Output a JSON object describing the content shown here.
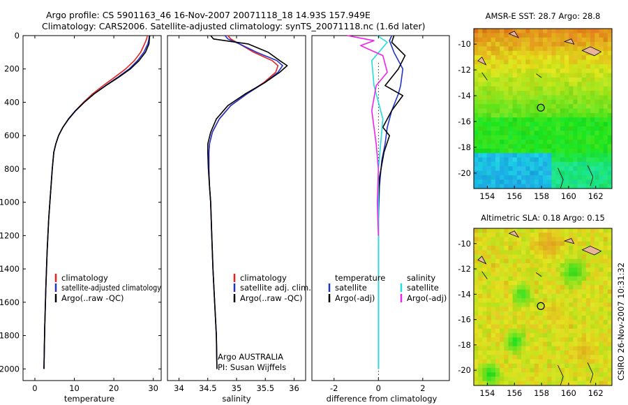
{
  "header": {
    "line1": "Argo profile: CS 5901163_46 16-Nov-2007 20071118_18 14.93S 157.949E",
    "line2": "Climatology: CARS2006. Satellite-adjusted climatology: synTS_20071118.nc (1.6d later)"
  },
  "colors": {
    "climatology": "#e8231f",
    "satellite": "#2233cc",
    "argo": "#000000",
    "salinity_satellite": "#22dddd",
    "salinity_argo": "#ee22ee",
    "land": "#e9b49a"
  },
  "legends": {
    "temperature": [
      "climatology",
      "satellite-adjusted climatology",
      "Argo(..raw -QC)"
    ],
    "salinity": [
      "climatology",
      "satellite adj. clim.",
      "Argo(..raw -QC)"
    ],
    "difference": {
      "temperature_header": "temperature",
      "salinity_header": "salinity",
      "temperature_items": [
        "satellite",
        "Argo(-adj)"
      ],
      "salinity_items": [
        "satellite",
        "Argo(-adj)"
      ]
    }
  },
  "annotation": {
    "line1": "Argo AUSTRALIA",
    "line2": "PI: Susan Wijffels"
  },
  "maps": {
    "sst_title": "AMSR-E SST: 28.7 Argo: 28.8",
    "sla_title": "Altimetric SLA: 0.18 Argo: 0.15",
    "xticks": [
      "154",
      "156",
      "158",
      "160",
      "162"
    ],
    "yticks": [
      "-10",
      "-12",
      "-14",
      "-16",
      "-18",
      "-20"
    ],
    "x_range": [
      153,
      163.2
    ],
    "y_range": [
      -21.2,
      -8.8
    ],
    "argo_position": {
      "lon": 157.949,
      "lat": -14.93
    }
  },
  "side_label": "CSIRO 26-Nov-2007 10:31:32",
  "chart_data": [
    {
      "type": "line",
      "title": "",
      "xlabel": "temperature",
      "ylabel": "",
      "xlim": [
        -3,
        32
      ],
      "ylim": [
        2070,
        0
      ],
      "xticks": [
        "0",
        "10",
        "20",
        "30"
      ],
      "yticks": [
        "0",
        "200",
        "400",
        "600",
        "800",
        "1000",
        "1200",
        "1400",
        "1600",
        "1800",
        "2000"
      ],
      "series": [
        {
          "name": "climatology",
          "x": [
            28.5,
            28.3,
            27.8,
            26.8,
            25.2,
            23,
            20.2,
            17.3,
            14.6,
            12.3,
            10.3,
            8.6,
            7.1,
            6,
            5.3,
            4.8,
            4.4,
            4.1,
            3.8,
            3.5,
            3.1,
            2.8,
            2.5,
            2.3
          ],
          "y": [
            0,
            20,
            50,
            100,
            150,
            200,
            250,
            300,
            350,
            400,
            450,
            500,
            550,
            600,
            650,
            700,
            800,
            900,
            1000,
            1100,
            1300,
            1500,
            1750,
            2000
          ]
        },
        {
          "name": "satellite-adjusted climatology",
          "x": [
            29,
            28.9,
            28.6,
            27.6,
            26,
            23.9,
            21,
            17.9,
            15,
            12.5,
            10.4,
            8.6,
            7.1,
            6,
            5.3,
            4.8,
            4.4,
            4.1,
            3.8,
            3.5,
            3.1,
            2.8,
            2.5,
            2.3
          ],
          "y": [
            0,
            20,
            50,
            100,
            150,
            200,
            250,
            300,
            350,
            400,
            450,
            500,
            550,
            600,
            650,
            700,
            800,
            900,
            1000,
            1100,
            1300,
            1500,
            1750,
            2000
          ]
        },
        {
          "name": "Argo(..raw -QC)",
          "x": [
            29.1,
            29,
            28.9,
            28,
            26.4,
            24.2,
            21.2,
            18,
            15,
            12.5,
            10.3,
            8.5,
            7.1,
            6,
            5.3,
            4.8,
            4.4,
            4.1,
            3.8,
            3.5,
            3.1,
            2.8,
            2.5,
            2.3
          ],
          "y": [
            0,
            20,
            50,
            100,
            150,
            200,
            250,
            300,
            350,
            400,
            450,
            500,
            550,
            600,
            650,
            700,
            800,
            900,
            1000,
            1100,
            1300,
            1500,
            1750,
            2000
          ]
        }
      ]
    },
    {
      "type": "line",
      "title": "",
      "xlabel": "salinity",
      "ylabel": "",
      "xlim": [
        33.8,
        36.2
      ],
      "ylim": [
        2070,
        0
      ],
      "xticks": [
        "34",
        "34.5",
        "35",
        "35.5",
        "36"
      ],
      "series": [
        {
          "name": "climatology",
          "x": [
            34.85,
            34.9,
            35.05,
            35.3,
            35.62,
            35.72,
            35.68,
            35.48,
            35.18,
            34.9,
            34.7,
            34.58,
            34.53,
            34.52,
            34.52,
            34.53,
            34.55,
            34.57,
            34.59,
            34.62,
            34.65,
            34.66
          ],
          "y": [
            0,
            20,
            50,
            100,
            150,
            180,
            220,
            280,
            350,
            420,
            500,
            580,
            650,
            700,
            800,
            900,
            1000,
            1200,
            1400,
            1600,
            1800,
            2000
          ]
        },
        {
          "name": "satellite adj. clim.",
          "x": [
            34.8,
            34.85,
            35.05,
            35.35,
            35.7,
            35.8,
            35.72,
            35.5,
            35.18,
            34.9,
            34.7,
            34.58,
            34.53,
            34.52,
            34.52,
            34.53,
            34.55,
            34.57,
            34.59,
            34.62,
            34.65,
            34.66
          ],
          "y": [
            0,
            20,
            50,
            100,
            150,
            180,
            220,
            280,
            350,
            420,
            500,
            580,
            650,
            700,
            800,
            900,
            1000,
            1200,
            1400,
            1600,
            1800,
            2000
          ]
        },
        {
          "name": "Argo(..raw -QC)",
          "x": [
            34.55,
            34.6,
            35.2,
            35.55,
            35.75,
            35.88,
            35.75,
            35.5,
            35.15,
            34.85,
            34.65,
            34.55,
            34.5,
            34.5,
            34.51,
            34.53,
            34.55,
            34.57,
            34.59,
            34.62,
            34.65,
            34.66
          ],
          "y": [
            0,
            20,
            50,
            100,
            150,
            180,
            220,
            280,
            350,
            420,
            500,
            580,
            650,
            700,
            800,
            900,
            1000,
            1200,
            1400,
            1600,
            1800,
            2000
          ]
        }
      ]
    },
    {
      "type": "line",
      "title": "",
      "xlabel": "difference from climatology",
      "ylabel": "",
      "xlim": [
        -3,
        3.2
      ],
      "ylim": [
        2070,
        0
      ],
      "xticks": [
        "-2",
        "0",
        "2"
      ],
      "series": [
        {
          "name": "temperature satellite",
          "x": [
            0.6,
            0.5,
            0.7,
            1.1,
            1.0,
            0.9,
            0.6,
            0.4,
            0.3,
            0.15,
            0.05,
            0,
            0,
            0
          ],
          "y": [
            0,
            30,
            100,
            200,
            300,
            350,
            450,
            550,
            650,
            750,
            900,
            1100,
            1500,
            2000
          ]
        },
        {
          "name": "temperature Argo(-adj)",
          "x": [
            0.7,
            0.6,
            1.2,
            0.9,
            0.3,
            1.1,
            0.6,
            0.2,
            0.5,
            0.25,
            0.05,
            0,
            0,
            0
          ],
          "y": [
            0,
            40,
            120,
            200,
            300,
            360,
            450,
            550,
            600,
            700,
            850,
            1000,
            1500,
            2000
          ]
        },
        {
          "name": "salinity satellite",
          "x": [
            -0.05,
            0.4,
            -0.3,
            -0.2,
            0.2,
            0,
            0,
            0
          ],
          "y": [
            0,
            40,
            150,
            300,
            500,
            800,
            1200,
            2000
          ]
        },
        {
          "name": "salinity Argo(-adj)",
          "x": [
            -1.4,
            -0.2,
            -0.8,
            0.2,
            0.4,
            -0.1,
            -0.3,
            -0.1,
            0,
            -0.05,
            0
          ],
          "y": [
            0,
            30,
            60,
            120,
            220,
            300,
            450,
            650,
            800,
            1000,
            1200
          ]
        }
      ]
    }
  ]
}
